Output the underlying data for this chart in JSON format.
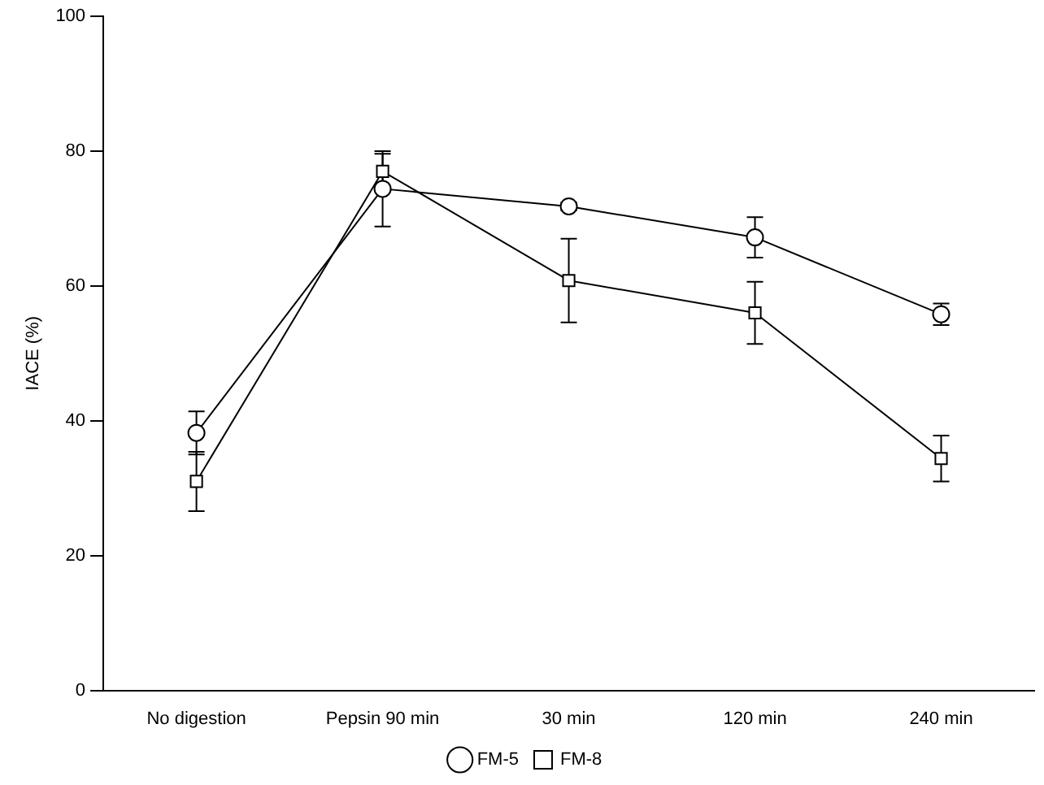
{
  "chart_data": {
    "type": "line",
    "ylabel": "IACE (%)",
    "categories": [
      "No digestion",
      "Pepsin 90 min",
      "30 min",
      "120 min",
      "240 min"
    ],
    "series": [
      {
        "name": "FM-5",
        "color": "#000000",
        "marker": "circle",
        "values": [
          38.2,
          74.4,
          71.8,
          67.2,
          55.8
        ],
        "errors": [
          3.2,
          5.6,
          0.6,
          3,
          1.6
        ]
      },
      {
        "name": "FM-8",
        "color": "#000000",
        "marker": "square",
        "values": [
          31,
          77,
          60.8,
          56,
          34.4
        ],
        "errors": [
          4.4,
          2.6,
          6.2,
          4.6,
          3.4
        ]
      }
    ],
    "ylim": [
      0,
      100
    ],
    "yticks": [
      0,
      20,
      40,
      60,
      80,
      100
    ],
    "grid": false,
    "legend": "bottom",
    "line_style": "solid"
  }
}
